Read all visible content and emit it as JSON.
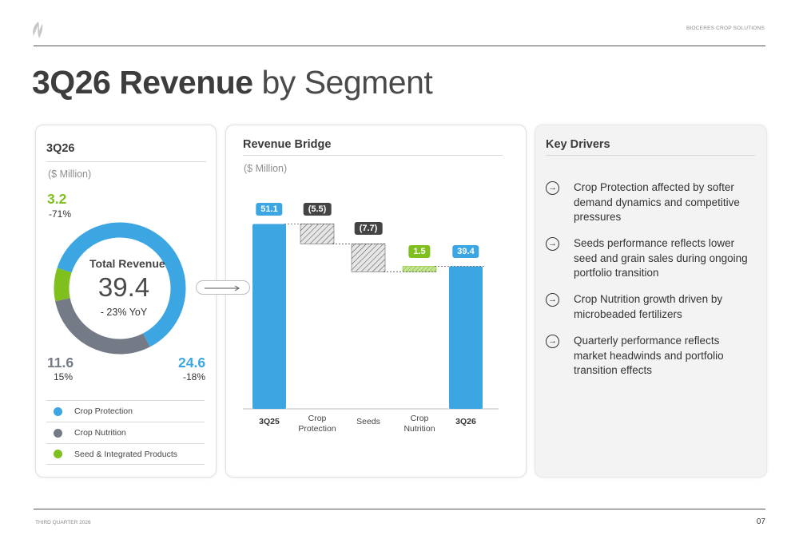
{
  "header": {
    "brand": "BIOCERES CROP SOLUTIONS",
    "title_bold": "3Q26 Revenue",
    "title_rest": " by Segment"
  },
  "donut_card": {
    "title": "3Q26",
    "unit": "($ Million)",
    "center_title": "Total Revenue",
    "center_value": "39.4",
    "yoy": "- 23% YoY",
    "segments": [
      {
        "name": "Crop Protection",
        "value": "24.6",
        "change": "-18%",
        "color": "#3ba6e2"
      },
      {
        "name": "Crop Nutrition",
        "value": "11.6",
        "change": "15%",
        "color": "#747b86"
      },
      {
        "name": "Seed & Integrated Products",
        "value": "3.2",
        "change": "-71%",
        "color": "#7fbf1e"
      }
    ],
    "legend": [
      {
        "label": "Crop Protection",
        "color": "#3ba6e2"
      },
      {
        "label": "Crop Nutrition",
        "color": "#747b86"
      },
      {
        "label": "Seed & Integrated Products",
        "color": "#7fbf1e"
      }
    ]
  },
  "bridge_card": {
    "title": "Revenue Bridge",
    "unit": "($ Million)"
  },
  "chart_data": [
    {
      "type": "pie",
      "title": "3Q26",
      "categories": [
        "Crop Protection",
        "Crop Nutrition",
        "Seed & Integrated Products"
      ],
      "values": [
        24.6,
        11.6,
        3.2
      ],
      "changes": [
        "-18%",
        "15%",
        "-71%"
      ],
      "total": 39.4
    },
    {
      "type": "bar",
      "subtype": "waterfall",
      "title": "Revenue Bridge",
      "categories": [
        "3Q25",
        "Crop Protection",
        "Seeds",
        "Crop Nutrition",
        "3Q26"
      ],
      "values": [
        51.1,
        -5.5,
        -7.7,
        1.5,
        39.4
      ],
      "labels": [
        "51.1",
        "(5.5)",
        "(7.7)",
        "1.5",
        "39.4"
      ],
      "kinds": [
        "total",
        "decrease",
        "decrease",
        "increase",
        "total"
      ]
    }
  ],
  "drivers": {
    "title": "Key Drivers",
    "items": [
      "Crop Protection affected by softer demand dynamics and competitive pressures",
      "Seeds performance reflects lower seed and grain sales during ongoing portfolio transition",
      "Crop Nutrition growth driven by microbeaded fertilizers",
      "Quarterly performance reflects market headwinds and portfolio transition effects"
    ]
  },
  "footer": {
    "left": "THIRD QUARTER 2026",
    "page": "07"
  }
}
